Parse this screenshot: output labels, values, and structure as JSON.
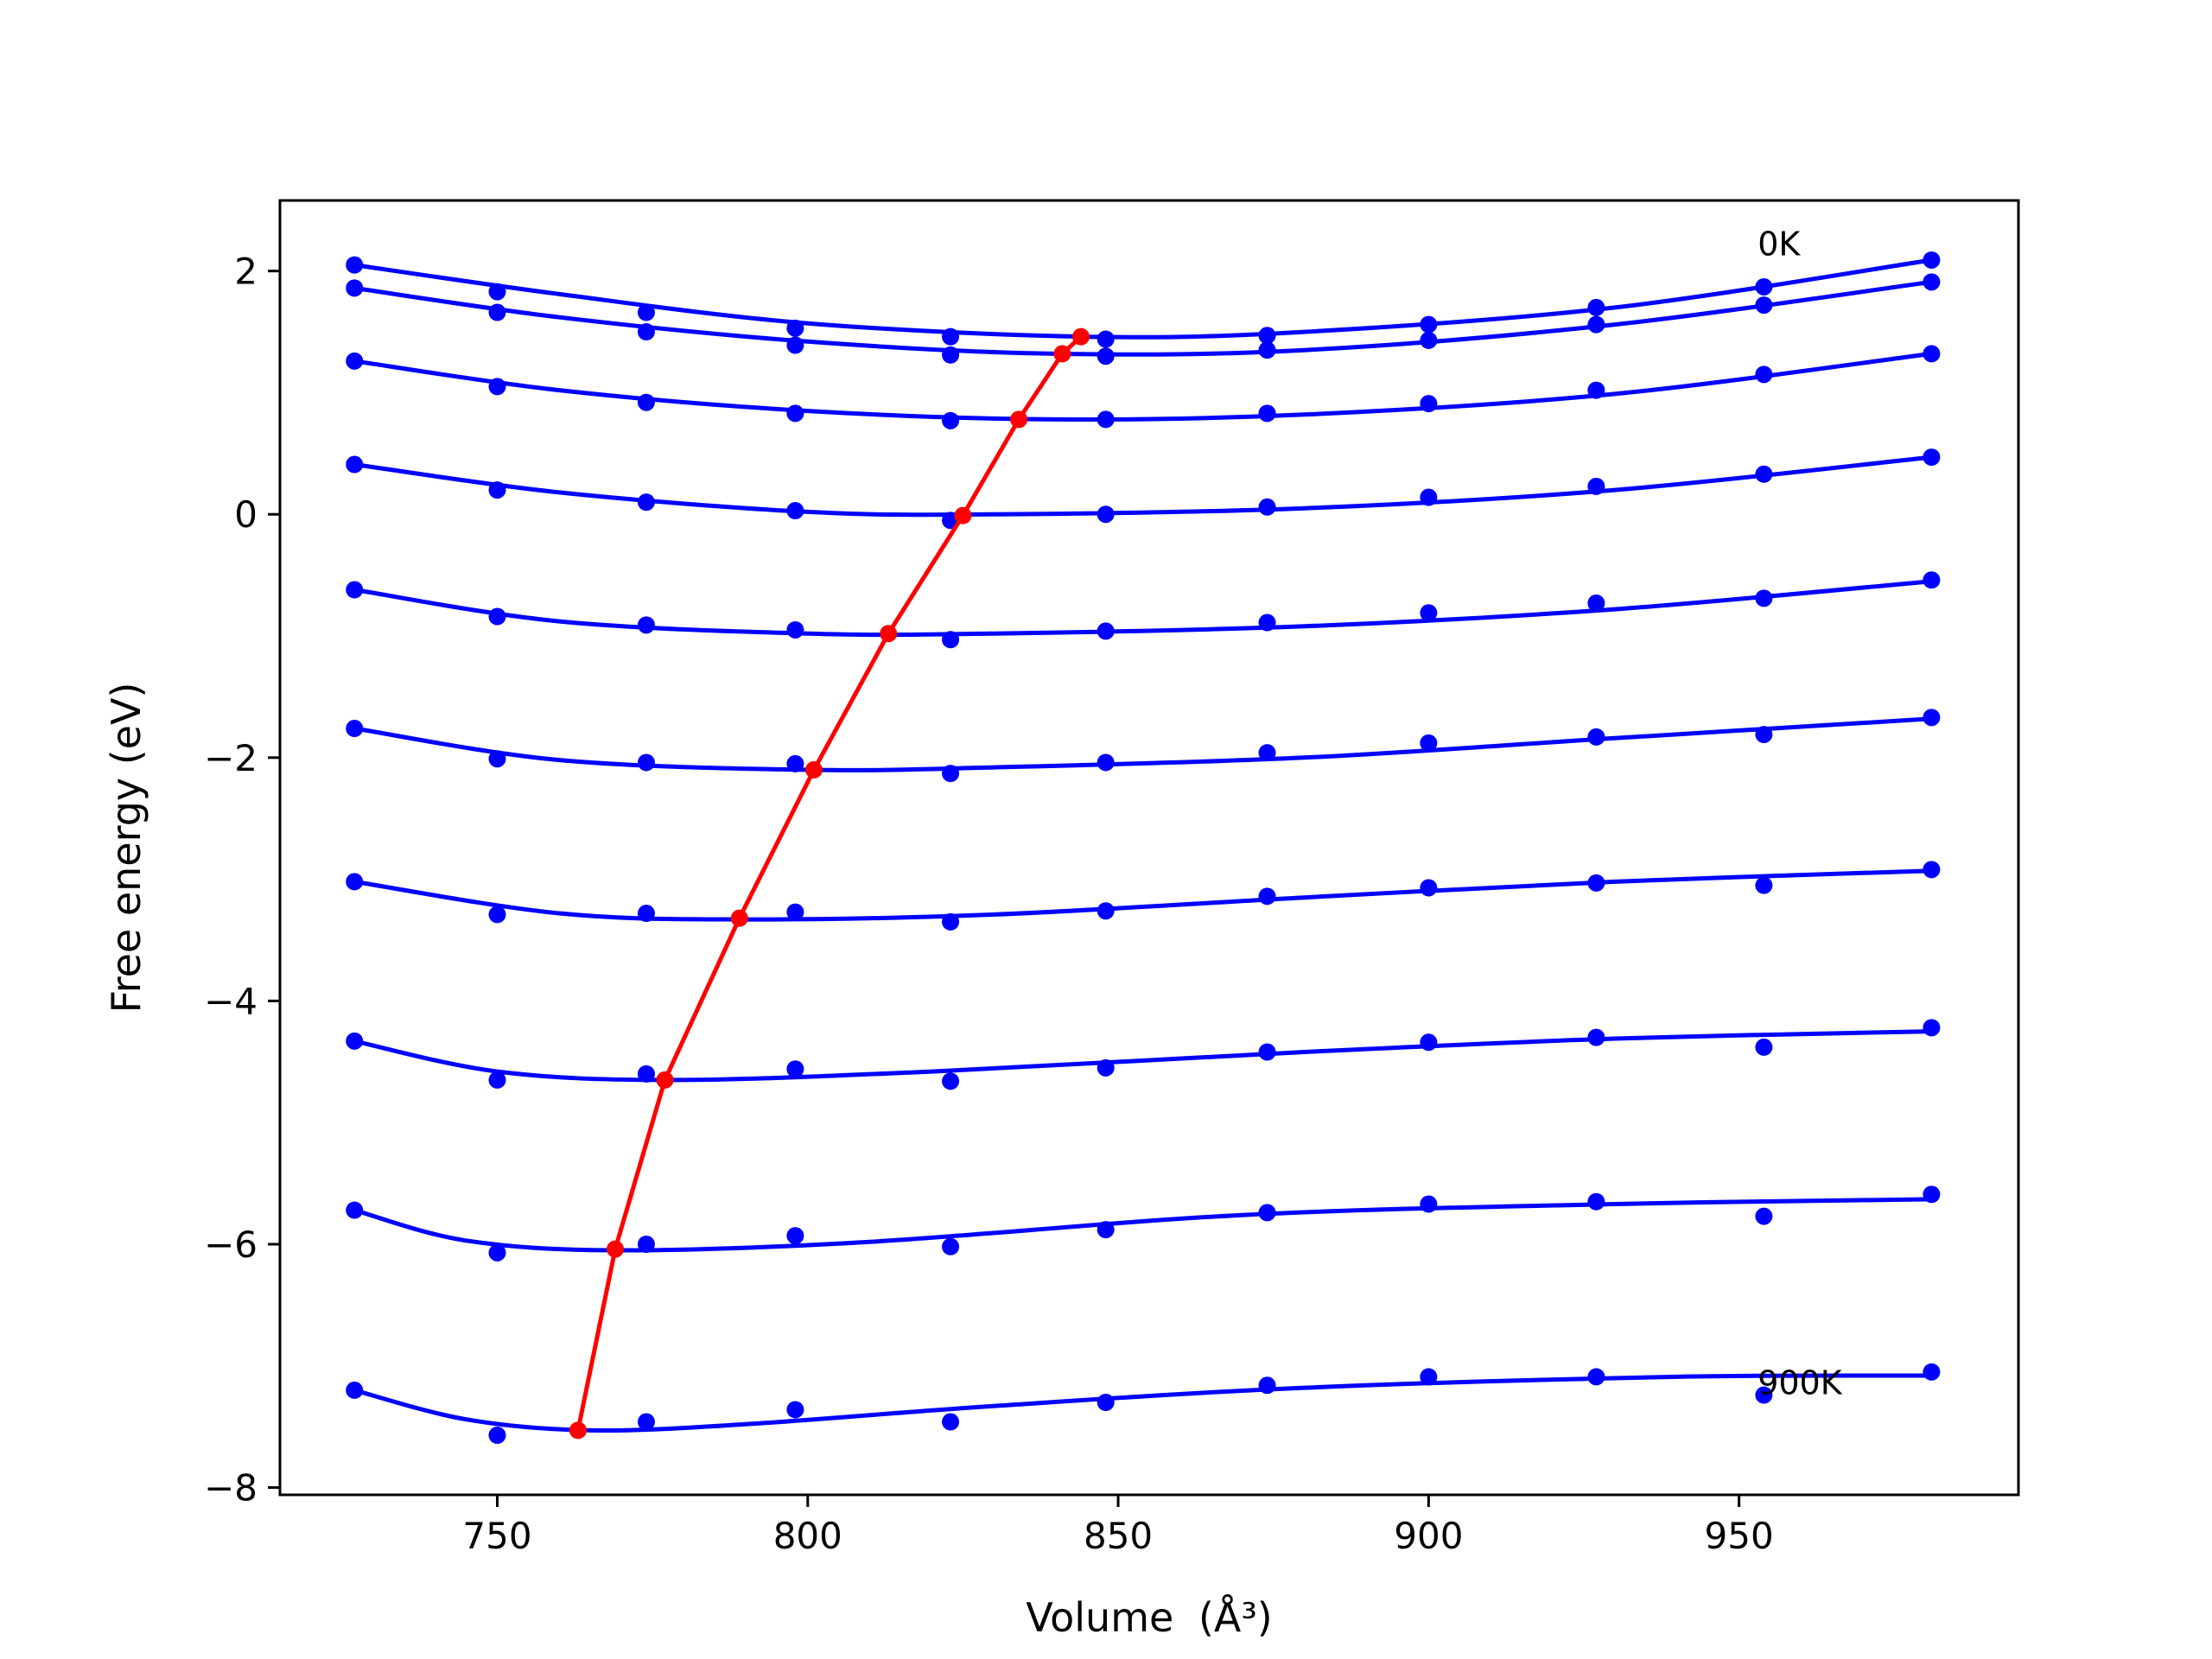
{
  "chart_data": {
    "type": "line",
    "title": "",
    "xlabel": "Volume",
    "xlabel_unit": "(Å³)",
    "ylabel": "Free energy (eV)",
    "xlim": [
      715,
      995
    ],
    "ylim": [
      -8.06,
      2.58
    ],
    "xticks": [
      750,
      800,
      850,
      900,
      950
    ],
    "yticks": [
      2,
      0,
      -2,
      -4,
      -6,
      -8
    ],
    "xtick_labels": [
      "750",
      "800",
      "850",
      "900",
      "950"
    ],
    "ytick_labels": [
      "2",
      "0",
      "−2",
      "−4",
      "−6",
      "−8"
    ],
    "grid": false,
    "legend": "none",
    "colors": {
      "curves": "#0000ff",
      "minimum_path": "#ff0000",
      "frame": "#000000"
    },
    "annotations": [
      {
        "text": "0K",
        "x": 953,
        "y": 2.22
      },
      {
        "text": "900K",
        "x": 953,
        "y": -7.14
      }
    ],
    "x": [
      727,
      750,
      774,
      798,
      823,
      848,
      874,
      900,
      927,
      954,
      981
    ],
    "series": [
      {
        "points": [
          2.05,
          1.83,
          1.66,
          1.53,
          1.46,
          1.44,
          1.47,
          1.56,
          1.7,
          1.87,
          2.09
        ],
        "fit": [
          [
            727,
            2.05
          ],
          [
            760,
            1.81
          ],
          [
            800,
            1.57
          ],
          [
            845,
            1.46
          ],
          [
            880,
            1.5
          ],
          [
            930,
            1.7
          ],
          [
            981,
            2.09
          ]
        ]
      },
      {
        "points": [
          1.86,
          1.66,
          1.5,
          1.39,
          1.31,
          1.3,
          1.35,
          1.43,
          1.56,
          1.72,
          1.91
        ],
        "fit": [
          [
            727,
            1.86
          ],
          [
            760,
            1.62
          ],
          [
            800,
            1.42
          ],
          [
            840,
            1.32
          ],
          [
            880,
            1.35
          ],
          [
            930,
            1.56
          ],
          [
            981,
            1.91
          ]
        ]
      },
      {
        "points": [
          1.26,
          1.05,
          0.92,
          0.83,
          0.77,
          0.78,
          0.83,
          0.91,
          1.02,
          1.15,
          1.32
        ],
        "fit": [
          [
            727,
            1.26
          ],
          [
            760,
            1.02
          ],
          [
            800,
            0.85
          ],
          [
            840,
            0.78
          ],
          [
            880,
            0.82
          ],
          [
            930,
            0.99
          ],
          [
            981,
            1.32
          ]
        ]
      },
      {
        "points": [
          0.41,
          0.2,
          0.1,
          0.03,
          -0.05,
          0.0,
          0.06,
          0.14,
          0.23,
          0.33,
          0.47
        ],
        "fit": [
          [
            727,
            0.41
          ],
          [
            760,
            0.18
          ],
          [
            800,
            0.02
          ],
          [
            830,
            0.0
          ],
          [
            880,
            0.05
          ],
          [
            930,
            0.2
          ],
          [
            981,
            0.47
          ]
        ]
      },
      {
        "points": [
          -0.62,
          -0.84,
          -0.91,
          -0.95,
          -1.03,
          -0.96,
          -0.89,
          -0.81,
          -0.73,
          -0.69,
          -0.54
        ],
        "fit": [
          [
            727,
            -0.62
          ],
          [
            760,
            -0.88
          ],
          [
            800,
            -0.98
          ],
          [
            830,
            -0.98
          ],
          [
            880,
            -0.92
          ],
          [
            930,
            -0.78
          ],
          [
            981,
            -0.55
          ]
        ]
      },
      {
        "points": [
          -1.76,
          -2.01,
          -2.04,
          -2.05,
          -2.13,
          -2.04,
          -1.96,
          -1.88,
          -1.83,
          -1.81,
          -1.67
        ],
        "fit": [
          [
            727,
            -1.76
          ],
          [
            760,
            -2.02
          ],
          [
            800,
            -2.1
          ],
          [
            830,
            -2.08
          ],
          [
            880,
            -2.0
          ],
          [
            930,
            -1.84
          ],
          [
            981,
            -1.68
          ]
        ]
      },
      {
        "points": [
          -3.02,
          -3.29,
          -3.28,
          -3.27,
          -3.35,
          -3.26,
          -3.14,
          -3.07,
          -3.03,
          -3.05,
          -2.92
        ],
        "fit": [
          [
            727,
            -3.02
          ],
          [
            760,
            -3.28
          ],
          [
            790,
            -3.33
          ],
          [
            830,
            -3.29
          ],
          [
            880,
            -3.15
          ],
          [
            930,
            -3.02
          ],
          [
            981,
            -2.93
          ]
        ]
      },
      {
        "points": [
          -4.33,
          -4.65,
          -4.6,
          -4.56,
          -4.66,
          -4.55,
          -4.42,
          -4.34,
          -4.3,
          -4.38,
          -4.22
        ],
        "fit": [
          [
            727,
            -4.33
          ],
          [
            750,
            -4.58
          ],
          [
            778,
            -4.65
          ],
          [
            820,
            -4.58
          ],
          [
            880,
            -4.42
          ],
          [
            930,
            -4.31
          ],
          [
            981,
            -4.25
          ]
        ]
      },
      {
        "points": [
          -5.72,
          -6.07,
          -6.0,
          -5.93,
          -6.02,
          -5.88,
          -5.74,
          -5.67,
          -5.65,
          -5.77,
          -5.59
        ],
        "fit": [
          [
            727,
            -5.72
          ],
          [
            745,
            -5.97
          ],
          [
            770,
            -6.05
          ],
          [
            810,
            -5.98
          ],
          [
            870,
            -5.76
          ],
          [
            930,
            -5.67
          ],
          [
            981,
            -5.63
          ]
        ]
      },
      {
        "points": [
          -7.2,
          -7.57,
          -7.46,
          -7.36,
          -7.46,
          -7.3,
          -7.16,
          -7.09,
          -7.09,
          -7.24,
          -7.05
        ],
        "fit": [
          [
            727,
            -7.2
          ],
          [
            745,
            -7.44
          ],
          [
            765,
            -7.53
          ],
          [
            790,
            -7.48
          ],
          [
            830,
            -7.33
          ],
          [
            880,
            -7.18
          ],
          [
            940,
            -7.09
          ],
          [
            981,
            -7.08
          ]
        ]
      }
    ],
    "minimum_path": {
      "x": [
        844,
        841,
        834,
        825,
        813,
        801,
        789,
        777,
        769,
        763
      ],
      "y": [
        1.46,
        1.32,
        0.78,
        -0.01,
        -0.98,
        -2.1,
        -3.32,
        -4.65,
        -6.04,
        -7.53
      ]
    }
  }
}
